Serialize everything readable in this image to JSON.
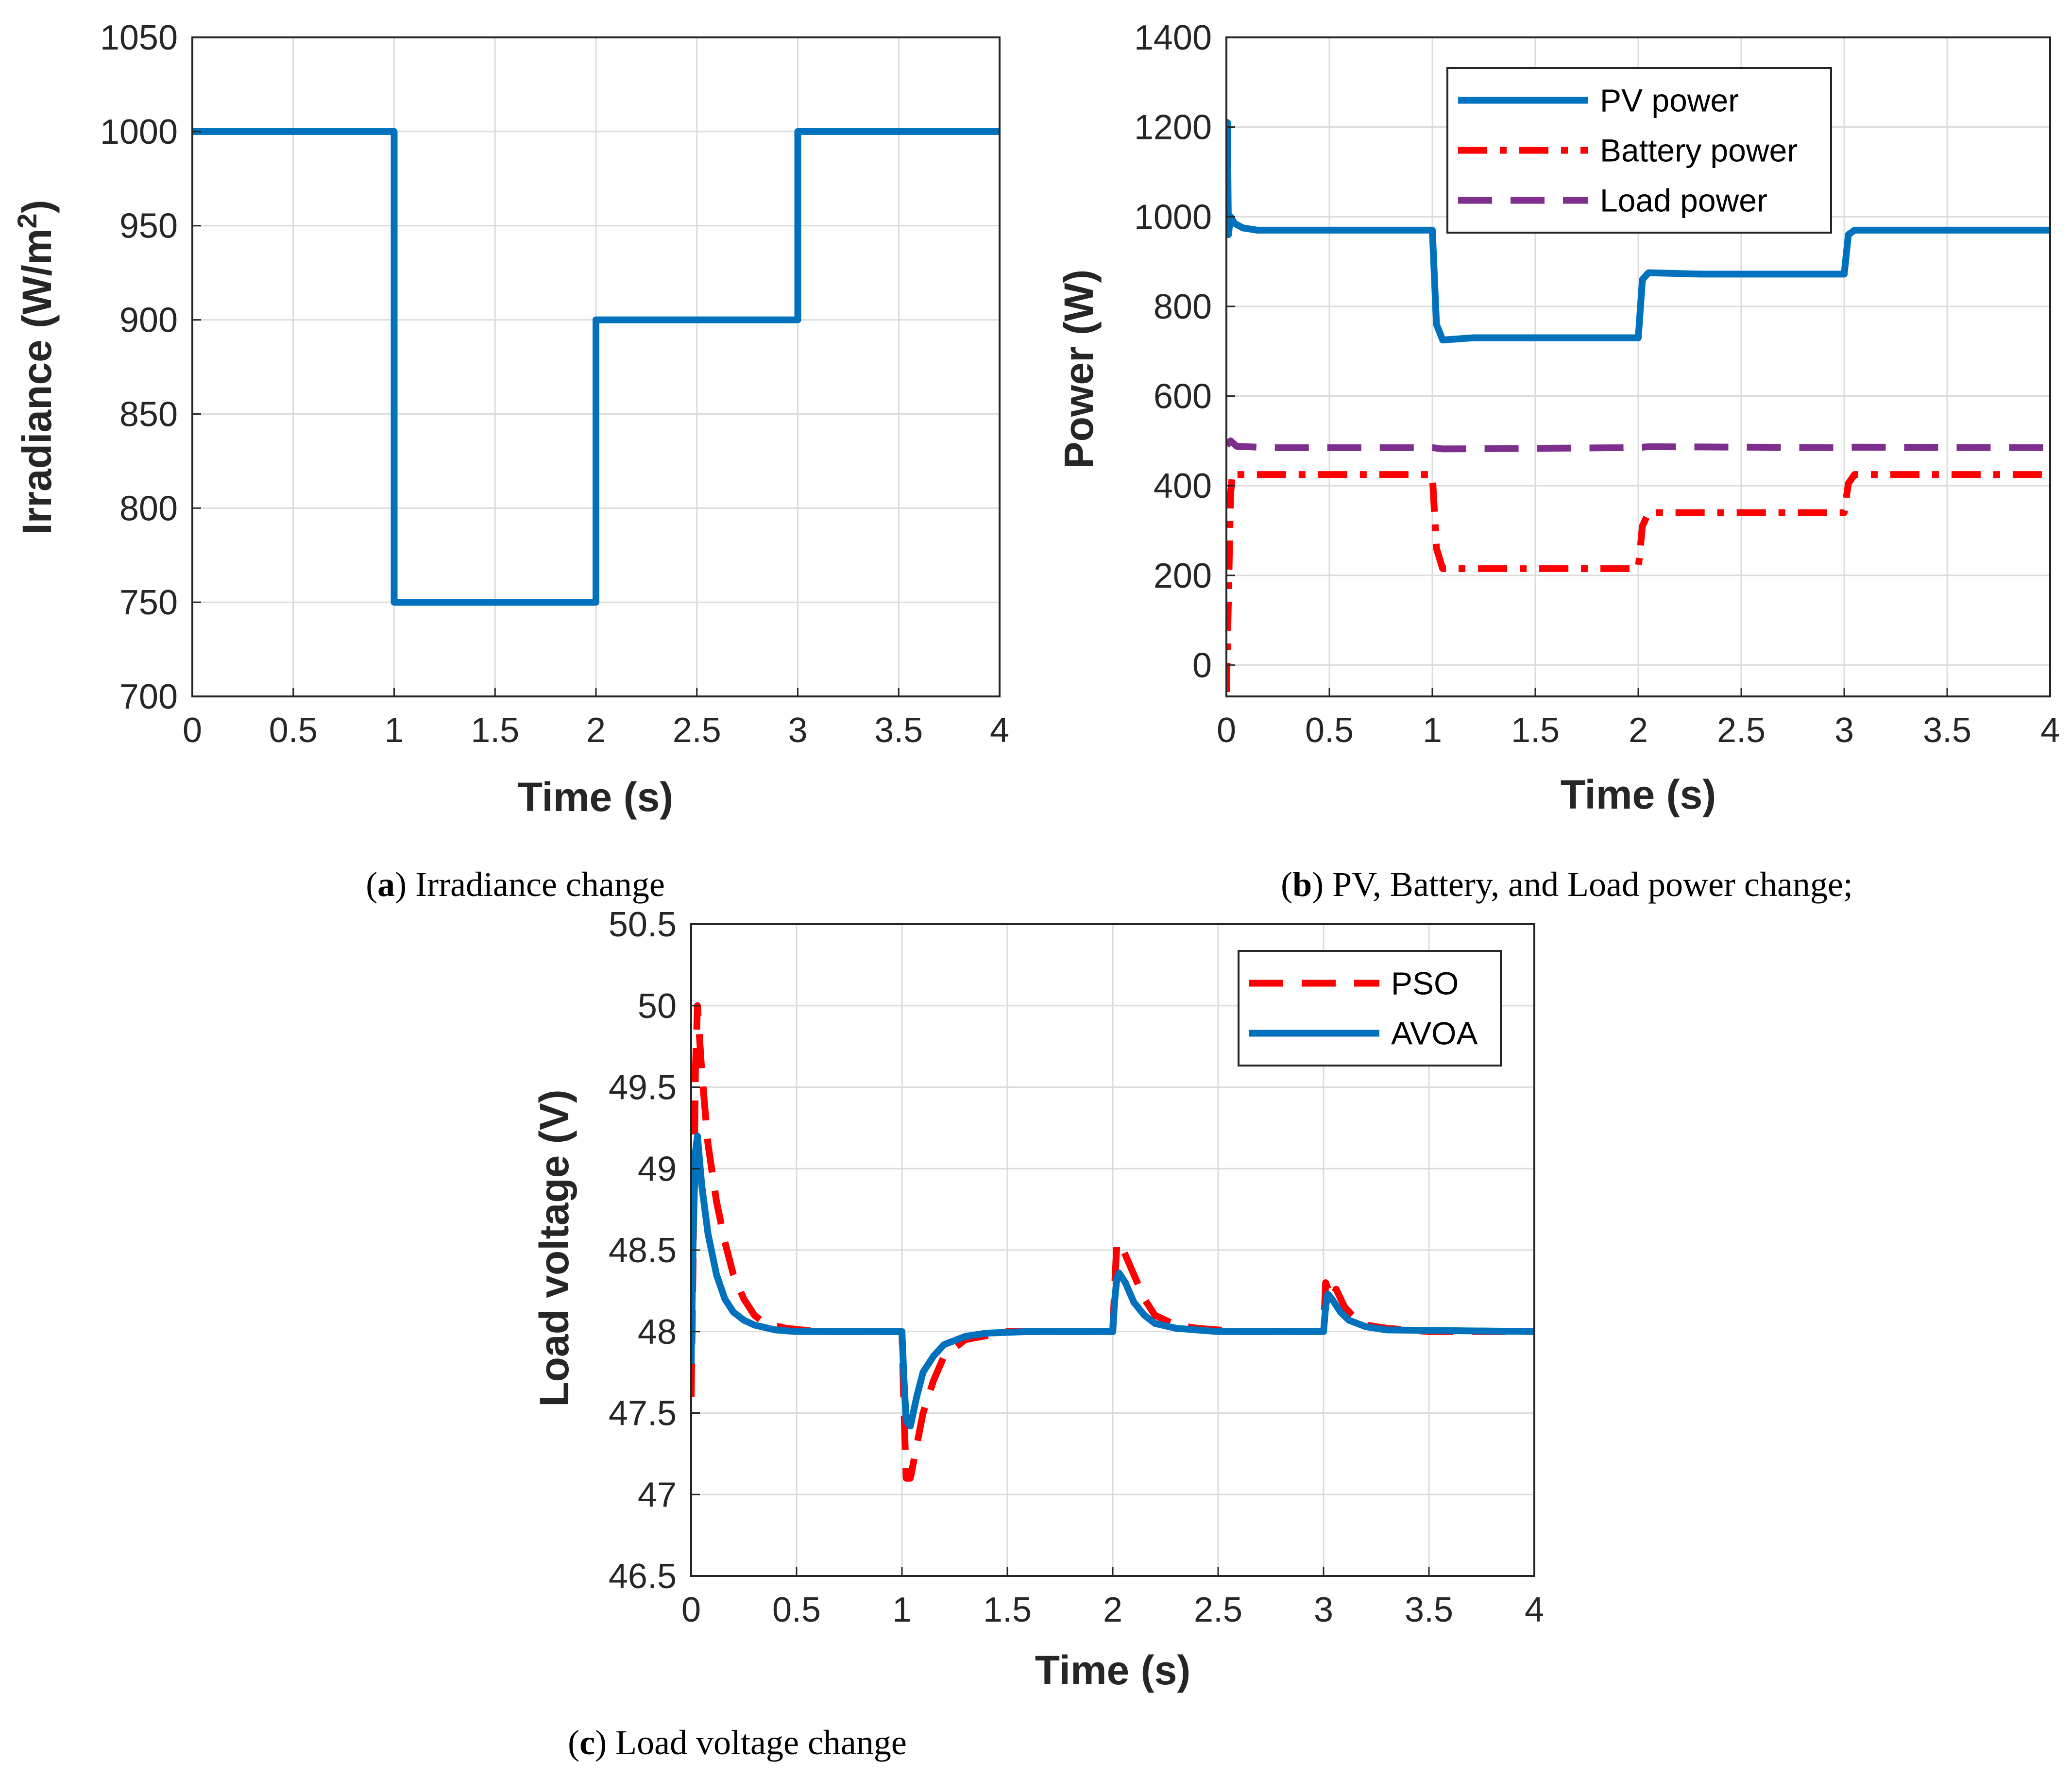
{
  "chart_data": [
    {
      "id": "a",
      "type": "line",
      "caption": {
        "letter": "a",
        "open": "(",
        "close": ")",
        "text": " Irradiance change"
      },
      "xlabel": "Time (s)",
      "ylabel": "Irradiance (W/m",
      "ylabel_sup": "2",
      "ylabel_tail": ")",
      "xlim": [
        0,
        4
      ],
      "ylim": [
        700,
        1050
      ],
      "xticks": [
        0,
        0.5,
        1,
        1.5,
        2,
        2.5,
        3,
        3.5,
        4
      ],
      "yticks": [
        700,
        750,
        800,
        850,
        900,
        950,
        1000,
        1050
      ],
      "grid": true,
      "series": [
        {
          "name": "Irradiance",
          "color": "#0072BD",
          "dash": "solid",
          "x": [
            0,
            1,
            1,
            2,
            2,
            3,
            3,
            4
          ],
          "y": [
            1000,
            1000,
            750,
            750,
            900,
            900,
            1000,
            1000
          ]
        }
      ]
    },
    {
      "id": "b",
      "type": "line",
      "caption": {
        "letter": "b",
        "open": "(",
        "close": ")",
        "text": " PV, Battery, and Load power change;"
      },
      "xlabel": "Time (s)",
      "ylabel": "Power (W)",
      "xlim": [
        0,
        4
      ],
      "ylim": [
        -70,
        1400
      ],
      "xticks": [
        0,
        0.5,
        1,
        1.5,
        2,
        2.5,
        3,
        3.5,
        4
      ],
      "yticks": [
        0,
        200,
        400,
        600,
        800,
        1000,
        1200,
        1400
      ],
      "grid": true,
      "legend_position": "top-right",
      "series": [
        {
          "name": "PV power",
          "color": "#0072BD",
          "dash": "solid",
          "x": [
            0,
            0.005,
            0.01,
            0.02,
            0.04,
            0.08,
            0.15,
            0.3,
            1.0,
            1.02,
            1.05,
            1.2,
            2.0,
            2.02,
            2.05,
            2.3,
            3.0,
            3.02,
            3.05,
            3.3,
            4.0
          ],
          "y": [
            970,
            1210,
            960,
            1000,
            985,
            975,
            970,
            970,
            970,
            760,
            725,
            730,
            730,
            860,
            875,
            872,
            872,
            960,
            970,
            970,
            970
          ]
        },
        {
          "name": "Battery power",
          "color": "#FF0000",
          "dash": "dashdot",
          "x": [
            0,
            0.01,
            0.02,
            0.03,
            0.05,
            0.1,
            1.0,
            1.02,
            1.05,
            1.2,
            2.0,
            2.02,
            2.05,
            2.3,
            3.0,
            3.02,
            3.05,
            3.3,
            4.0
          ],
          "y": [
            -60,
            150,
            380,
            430,
            425,
            425,
            425,
            260,
            215,
            215,
            215,
            310,
            340,
            340,
            340,
            405,
            425,
            425,
            425
          ]
        },
        {
          "name": "Load power",
          "color": "#7E2F8E",
          "dash": "dashed",
          "x": [
            0,
            0.02,
            0.05,
            0.2,
            1.0,
            1.05,
            2.0,
            2.05,
            3.0,
            3.05,
            4.0
          ],
          "y": [
            490,
            500,
            488,
            485,
            485,
            482,
            485,
            487,
            485,
            486,
            485
          ]
        }
      ]
    },
    {
      "id": "c",
      "type": "line",
      "caption": {
        "letter": "c",
        "open": "(",
        "close": ")",
        "text": " Load voltage change"
      },
      "xlabel": "Time (s)",
      "ylabel": "Load voltage (V)",
      "xlim": [
        0,
        4
      ],
      "ylim": [
        46.5,
        50.5
      ],
      "xticks": [
        0,
        0.5,
        1,
        1.5,
        2,
        2.5,
        3,
        3.5,
        4
      ],
      "yticks": [
        46.5,
        47,
        47.5,
        48,
        48.5,
        49,
        49.5,
        50,
        50.5
      ],
      "grid": true,
      "legend_position": "top-right",
      "series": [
        {
          "name": "PSO",
          "color": "#FF0000",
          "dash": "dashed",
          "x": [
            0,
            0.01,
            0.02,
            0.03,
            0.05,
            0.08,
            0.12,
            0.16,
            0.2,
            0.25,
            0.3,
            0.35,
            0.45,
            0.6,
            1.0,
            1.01,
            1.02,
            1.04,
            1.07,
            1.1,
            1.15,
            1.2,
            1.3,
            1.5,
            1.8,
            2.0,
            2.01,
            2.02,
            2.05,
            2.1,
            2.15,
            2.2,
            2.3,
            2.4,
            2.6,
            3.0,
            3.01,
            3.04,
            3.06,
            3.1,
            3.15,
            3.2,
            3.3,
            3.5,
            4.0
          ],
          "y": [
            47.6,
            48.5,
            49.6,
            50.0,
            49.6,
            49.15,
            48.8,
            48.55,
            48.35,
            48.2,
            48.1,
            48.05,
            48.02,
            48.0,
            48.0,
            47.5,
            47.1,
            47.1,
            47.3,
            47.5,
            47.7,
            47.85,
            47.95,
            48.0,
            48.0,
            48.0,
            48.3,
            48.55,
            48.5,
            48.35,
            48.2,
            48.1,
            48.04,
            48.02,
            48.0,
            48.0,
            48.3,
            48.2,
            48.26,
            48.15,
            48.08,
            48.04,
            48.02,
            48.0,
            48.0
          ]
        },
        {
          "name": "AVOA",
          "color": "#0072BD",
          "dash": "solid",
          "x": [
            0,
            0.01,
            0.02,
            0.03,
            0.05,
            0.08,
            0.12,
            0.16,
            0.2,
            0.25,
            0.3,
            0.4,
            0.5,
            1.0,
            1.01,
            1.02,
            1.04,
            1.07,
            1.1,
            1.15,
            1.2,
            1.3,
            1.4,
            1.6,
            2.0,
            2.01,
            2.02,
            2.03,
            2.06,
            2.1,
            2.15,
            2.2,
            2.3,
            2.5,
            3.0,
            3.01,
            3.02,
            3.04,
            3.08,
            3.12,
            3.2,
            3.3,
            4.0
          ],
          "y": [
            47.8,
            48.6,
            49.1,
            49.2,
            48.9,
            48.6,
            48.35,
            48.2,
            48.12,
            48.07,
            48.04,
            48.01,
            48.0,
            48.0,
            47.7,
            47.45,
            47.42,
            47.6,
            47.75,
            47.85,
            47.92,
            47.97,
            47.99,
            48.0,
            48.0,
            48.2,
            48.33,
            48.36,
            48.3,
            48.18,
            48.1,
            48.05,
            48.02,
            48.0,
            48.0,
            48.15,
            48.23,
            48.2,
            48.12,
            48.07,
            48.03,
            48.01,
            48.0
          ]
        }
      ]
    }
  ]
}
